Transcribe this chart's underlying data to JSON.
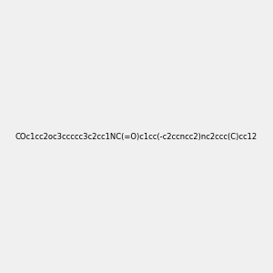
{
  "smiles": "COc1cc2oc3ccccc3c2cc1NC(=O)c1cc(-c2ccncc2)nc2ccc(C)cc12",
  "title": "",
  "bg_color": "#f0f0f0",
  "bond_color": "#1a1a1a",
  "atom_colors": {
    "N": "#0000ff",
    "O": "#ff0000"
  },
  "figsize": [
    3.0,
    3.0
  ],
  "dpi": 100
}
